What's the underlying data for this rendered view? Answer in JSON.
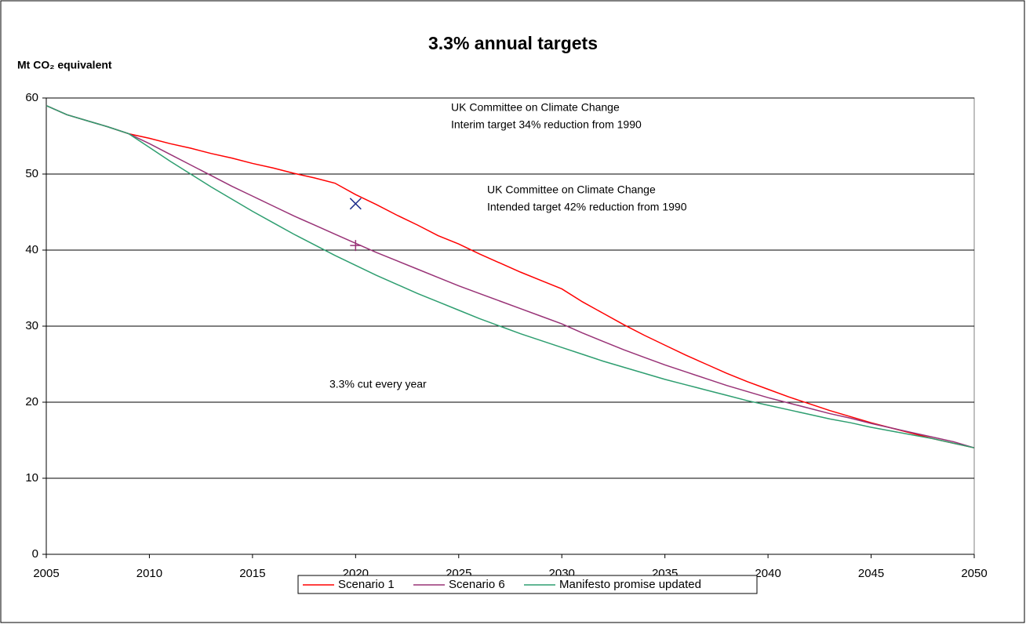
{
  "chart_data": {
    "type": "line",
    "title": "3.3% annual targets",
    "y_label": "Mt CO₂ equivalent",
    "x": [
      2005,
      2006,
      2007,
      2008,
      2009,
      2010,
      2011,
      2012,
      2013,
      2014,
      2015,
      2016,
      2017,
      2018,
      2019,
      2020,
      2021,
      2022,
      2023,
      2024,
      2025,
      2026,
      2027,
      2028,
      2029,
      2030,
      2031,
      2032,
      2033,
      2034,
      2035,
      2036,
      2037,
      2038,
      2039,
      2040,
      2041,
      2042,
      2043,
      2044,
      2045,
      2046,
      2047,
      2048,
      2049,
      2050
    ],
    "series": [
      {
        "name": "Scenario 1",
        "color": "#ff0000",
        "values": [
          59,
          57.8,
          57,
          56.2,
          55.3,
          54.7,
          54,
          53.4,
          52.7,
          52.1,
          51.4,
          50.8,
          50.1,
          49.5,
          48.8,
          47.3,
          46,
          44.6,
          43.3,
          41.9,
          40.8,
          39.5,
          38.3,
          37.1,
          36,
          34.9,
          33.2,
          31.7,
          30.2,
          28.8,
          27.5,
          26.2,
          25,
          23.8,
          22.7,
          21.7,
          20.7,
          19.8,
          18.9,
          18.1,
          17.3,
          16.6,
          15.9,
          15.2,
          14.6,
          14
        ]
      },
      {
        "name": "Scenario 6",
        "color": "#993377",
        "values": [
          59,
          57.8,
          57,
          56.2,
          55.3,
          54,
          52.6,
          51.2,
          49.8,
          48.4,
          47.1,
          45.8,
          44.5,
          43.3,
          42.1,
          40.9,
          39.7,
          38.6,
          37.5,
          36.4,
          35.3,
          34.3,
          33.3,
          32.3,
          31.3,
          30.3,
          29.1,
          28,
          26.9,
          25.9,
          24.9,
          24,
          23.1,
          22.2,
          21.4,
          20.6,
          19.9,
          19.2,
          18.5,
          17.9,
          17.2,
          16.6,
          16,
          15.4,
          14.8,
          14
        ]
      },
      {
        "name": "Manifesto promise updated",
        "color": "#2e9e70",
        "values": [
          59,
          57.8,
          57,
          56.2,
          55.3,
          53.5,
          51.7,
          50,
          48.3,
          46.7,
          45.1,
          43.6,
          42.1,
          40.7,
          39.3,
          38,
          36.7,
          35.5,
          34.3,
          33.2,
          32.1,
          31,
          30,
          29,
          28.1,
          27.2,
          26.3,
          25.4,
          24.6,
          23.8,
          23,
          22.3,
          21.6,
          20.9,
          20.2,
          19.6,
          19,
          18.4,
          17.8,
          17.3,
          16.7,
          16.2,
          15.7,
          15.2,
          14.6,
          14
        ]
      }
    ],
    "markers": [
      {
        "x": 2020,
        "y": 46.1,
        "shape": "x",
        "color": "#1f2e8c"
      },
      {
        "x": 2020,
        "y": 40.6,
        "shape": "plus",
        "color": "#993377"
      }
    ],
    "annotations": [
      [
        "UK Committee on Climate Change",
        "Interim target 34% reduction from 1990"
      ],
      [
        "UK Committee on Climate Change",
        "Intended target 42% reduction from 1990"
      ],
      [
        "3.3% cut every year"
      ]
    ],
    "xlim": [
      2005,
      2050
    ],
    "xticks": [
      2005,
      2010,
      2015,
      2020,
      2025,
      2030,
      2035,
      2040,
      2045,
      2050
    ],
    "ylim": [
      0,
      60
    ],
    "yticks": [
      0,
      10,
      20,
      30,
      40,
      50,
      60
    ],
    "grid": true,
    "legend": "bottom"
  }
}
